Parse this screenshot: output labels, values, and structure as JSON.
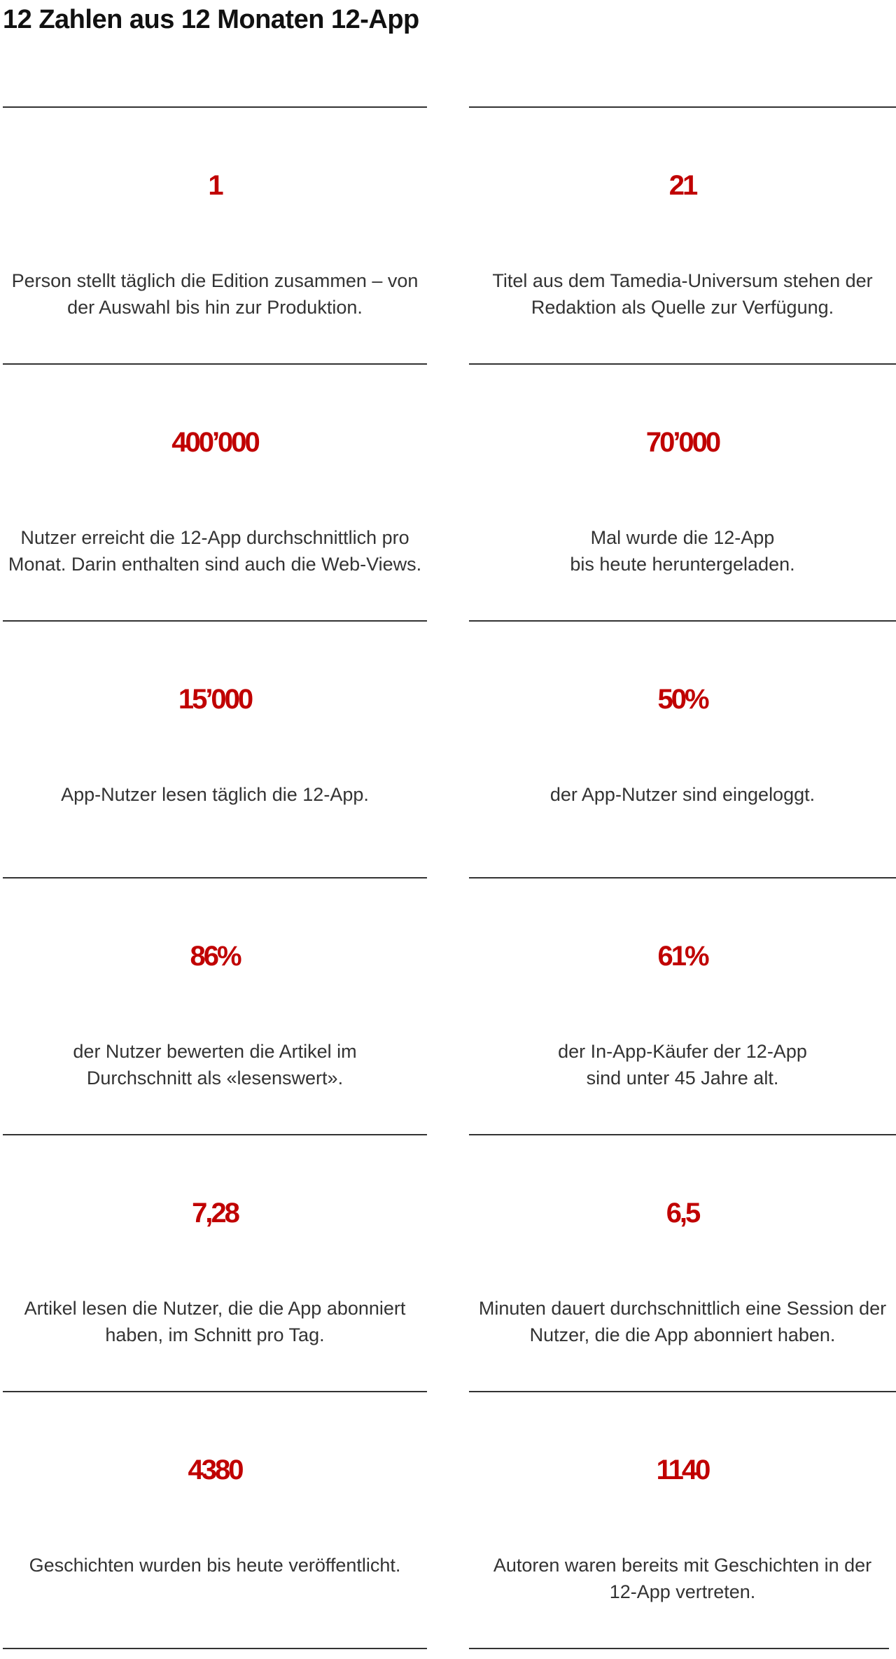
{
  "title": "12 Zahlen aus 12 Monaten 12-App",
  "stats": [
    {
      "number": "1",
      "text": "Person stellt täglich die Edition zusammen – von\nder Auswahl bis hin zur Produktion."
    },
    {
      "number": "21",
      "text": "Titel aus dem Tamedia-Universum stehen der\nRedaktion als Quelle zur Verfügung."
    },
    {
      "number": "400’000",
      "text": "Nutzer erreicht die 12-App durchschnittlich pro\nMonat. Darin enthalten sind auch die Web-Views."
    },
    {
      "number": "70’000",
      "text": "Mal wurde die 12-App\nbis heute heruntergeladen."
    },
    {
      "number": "15’000",
      "text": "App-Nutzer lesen täglich die 12-App."
    },
    {
      "number": "50%",
      "text": "der App-Nutzer sind eingeloggt."
    },
    {
      "number": "86%",
      "text": "der Nutzer bewerten die Artikel im\nDurchschnitt als «lesenswert»."
    },
    {
      "number": "61%",
      "text": "der In-App-Käufer der 12-App\nsind unter 45 Jahre alt."
    },
    {
      "number": "7,28",
      "text": "Artikel lesen die Nutzer, die die App abonniert\nhaben, im Schnitt pro Tag."
    },
    {
      "number": "6,5",
      "text": "Minuten dauert durchschnittlich eine Session der\nNutzer, die die App abonniert haben."
    },
    {
      "number": "4380",
      "text": "Geschichten wurden bis heute veröffentlicht."
    },
    {
      "number": "1140",
      "text": "Autoren waren bereits mit Geschichten in der\n12-App vertreten."
    }
  ],
  "colors": {
    "accent": "#c00000",
    "text": "#333333",
    "rule": "#333333"
  }
}
